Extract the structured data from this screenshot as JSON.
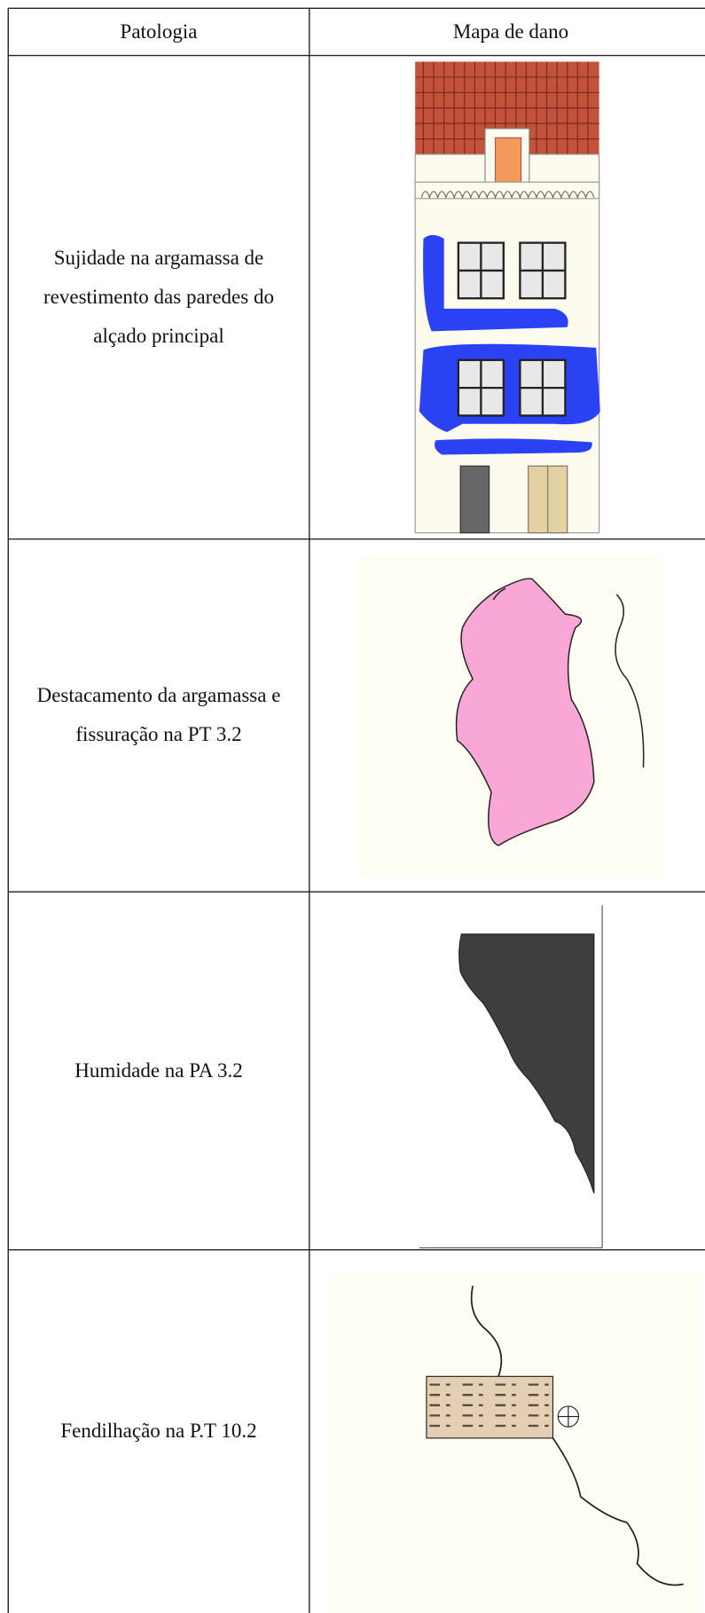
{
  "table": {
    "header": [
      "Patologia",
      "Mapa de dano"
    ],
    "rows": [
      [
        "Sujidade na argamassa de revestimento das paredes do alçado principal"
      ],
      [
        "Destacamento da argamassa e fissuração na PT 3.2"
      ],
      [
        "Humidade na PA 3.2"
      ],
      [
        "Fendilhação na P.T 10.2"
      ]
    ]
  }
}
